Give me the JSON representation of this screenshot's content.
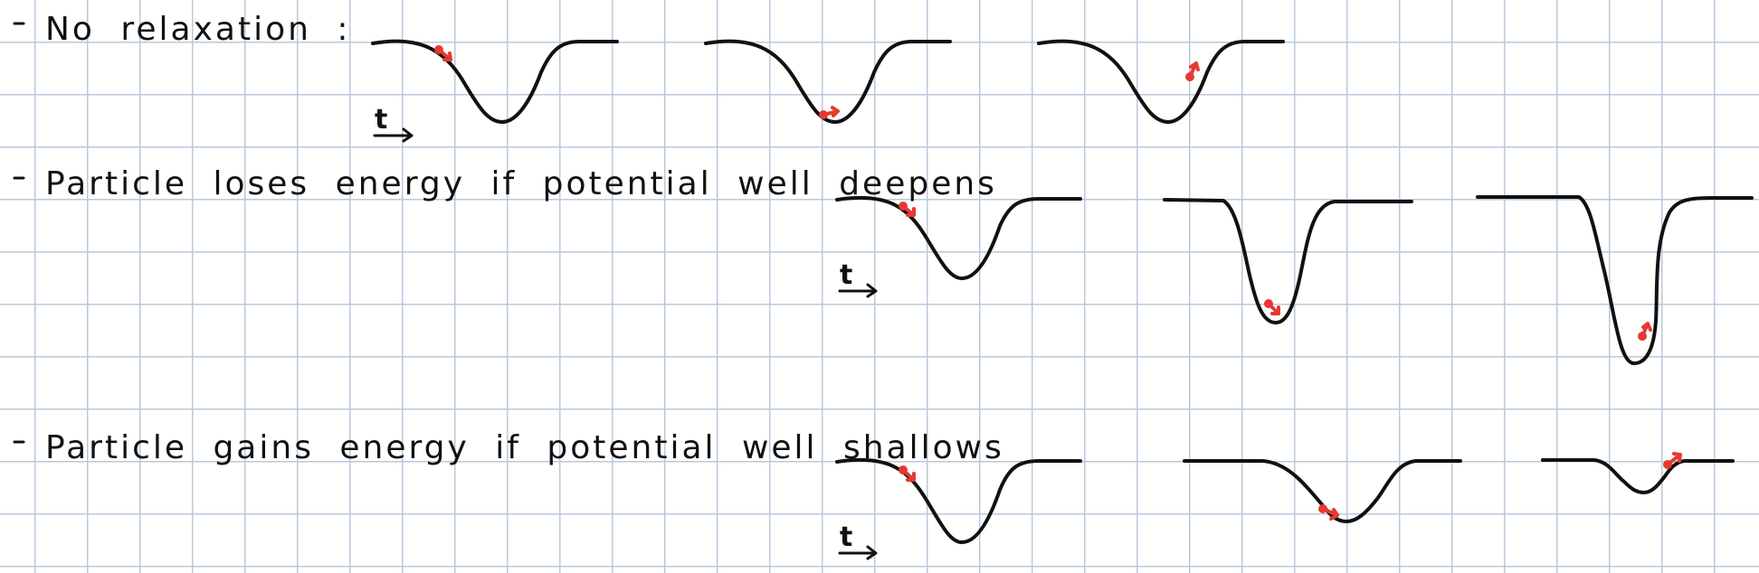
{
  "rows": [
    {
      "label": "No relaxation :"
    },
    {
      "label": "Particle loses energy if potential well deepens"
    },
    {
      "label": "Particle gains energy if potential well shallows"
    }
  ],
  "time_label": "t",
  "colors": {
    "ink": "#111111",
    "particle": "#e53a32",
    "grid": "#b9c9dc",
    "background": "#ffffff"
  },
  "icons": {
    "particle": "red-dot-with-arrow",
    "time": "right-arrow"
  }
}
